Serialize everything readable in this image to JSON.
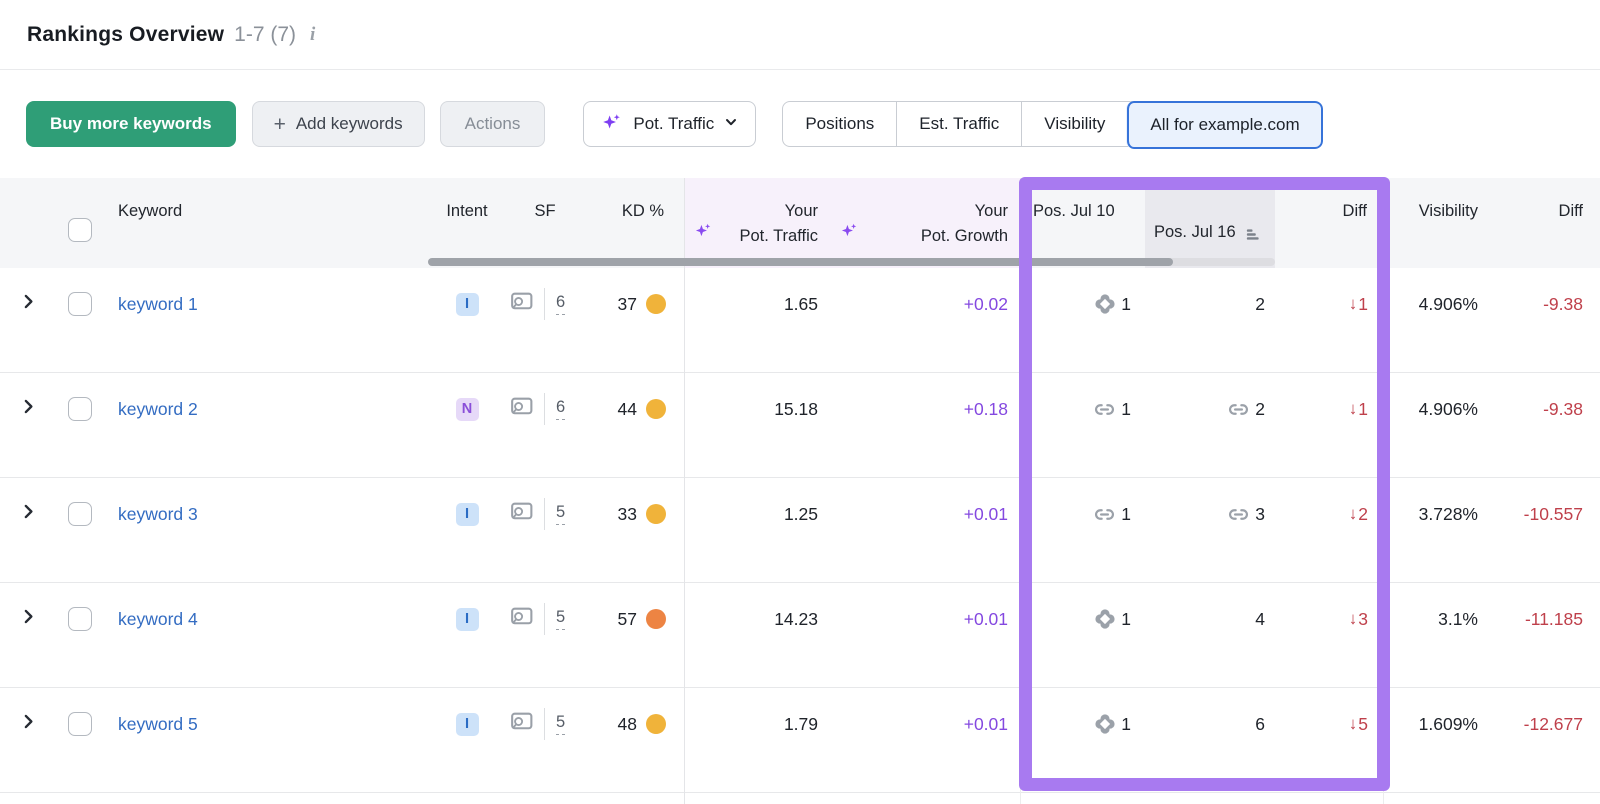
{
  "title_bar": {
    "title": "Rankings Overview",
    "range_info": "1-7 (7)"
  },
  "toolbar": {
    "buy_more_label": "Buy more keywords",
    "add_keywords_label": "Add keywords",
    "actions_label": "Actions",
    "metric_selector": {
      "label": "Pot. Traffic"
    },
    "view_segments": [
      {
        "label": "Positions",
        "selected": false
      },
      {
        "label": "Est. Traffic",
        "selected": false
      },
      {
        "label": "Visibility",
        "selected": false
      },
      {
        "label": "All for example.com",
        "selected": true
      }
    ]
  },
  "table": {
    "headers": {
      "keyword": "Keyword",
      "intent": "Intent",
      "sf": "SF",
      "kd": "KD %",
      "pot_traffic": [
        "Your",
        "Pot. Traffic"
      ],
      "pot_growth": [
        "Your",
        "Pot. Growth"
      ],
      "pos_old": "Pos. Jul 10",
      "pos_new": "Pos. Jul 16",
      "diff": "Diff",
      "visibility": "Visibility",
      "visibility_diff": "Diff"
    },
    "intent_styles": {
      "I": {
        "bg": "#cde2f9",
        "fg": "#2b6cc4"
      },
      "N": {
        "bg": "#e6d9f8",
        "fg": "#8a4fd9"
      }
    },
    "rows": [
      {
        "keyword": "keyword 1",
        "intent": "I",
        "sf_count": "6",
        "kd": "37",
        "kd_color": "#f0b33a",
        "pot_traffic": "1.65",
        "pot_growth": "+0.02",
        "pos_old": "1",
        "pos_old_icon": "ai-overview-icon",
        "pos_new": "2",
        "pos_new_icon": "",
        "diff_arrow": "↓",
        "diff": "1",
        "visibility": "4.906%",
        "visibility_diff": "-9.38"
      },
      {
        "keyword": "keyword 2",
        "intent": "N",
        "sf_count": "6",
        "kd": "44",
        "kd_color": "#f0b33a",
        "pot_traffic": "15.18",
        "pot_growth": "+0.18",
        "pos_old": "1",
        "pos_old_icon": "link-icon",
        "pos_new": "2",
        "pos_new_icon": "link-icon",
        "diff_arrow": "↓",
        "diff": "1",
        "visibility": "4.906%",
        "visibility_diff": "-9.38"
      },
      {
        "keyword": "keyword 3",
        "intent": "I",
        "sf_count": "5",
        "kd": "33",
        "kd_color": "#f0b33a",
        "pot_traffic": "1.25",
        "pot_growth": "+0.01",
        "pos_old": "1",
        "pos_old_icon": "link-icon",
        "pos_new": "3",
        "pos_new_icon": "link-icon",
        "diff_arrow": "↓",
        "diff": "2",
        "visibility": "3.728%",
        "visibility_diff": "-10.557"
      },
      {
        "keyword": "keyword 4",
        "intent": "I",
        "sf_count": "5",
        "kd": "57",
        "kd_color": "#ed8443",
        "pot_traffic": "14.23",
        "pot_growth": "+0.01",
        "pos_old": "1",
        "pos_old_icon": "ai-overview-icon",
        "pos_new": "4",
        "pos_new_icon": "",
        "diff_arrow": "↓",
        "diff": "3",
        "visibility": "3.1%",
        "visibility_diff": "-11.185"
      },
      {
        "keyword": "keyword 5",
        "intent": "I",
        "sf_count": "5",
        "kd": "48",
        "kd_color": "#f0b33a",
        "pot_traffic": "1.79",
        "pot_growth": "+0.01",
        "pos_old": "1",
        "pos_old_icon": "ai-overview-icon",
        "pos_new": "6",
        "pos_new_icon": "",
        "diff_arrow": "↓",
        "diff": "5",
        "visibility": "1.609%",
        "visibility_diff": "-12.677"
      }
    ]
  },
  "colors": {
    "highlight_purple": "#a87af0",
    "negative_red": "#bf404b",
    "growth_purple": "#8448e0",
    "brand_green": "#2f9e77",
    "link_blue": "#336cc2",
    "sparkle_purple": "#7e3ff2"
  }
}
